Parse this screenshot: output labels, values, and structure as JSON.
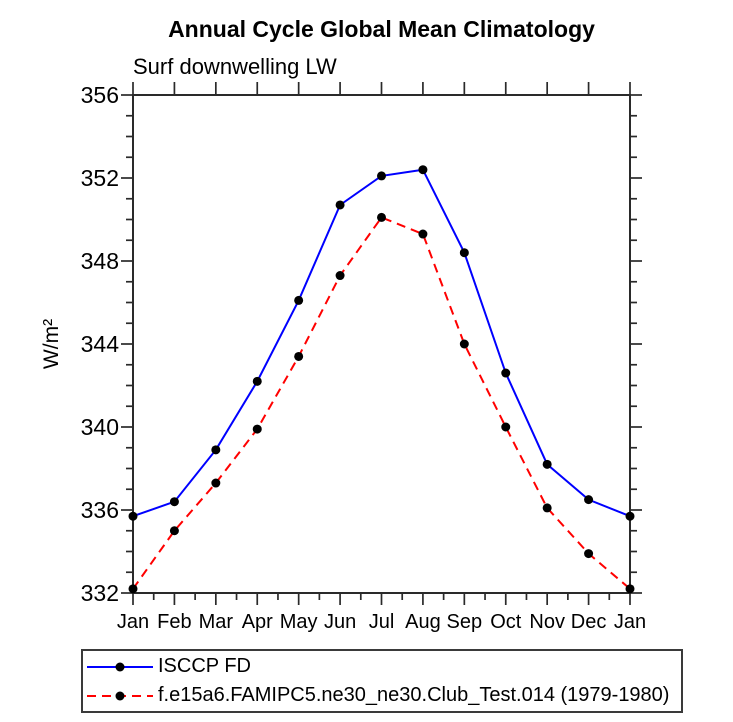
{
  "figure": {
    "title": "Annual Cycle Global Mean Climatology",
    "subtitle": "Surf downwelling LW",
    "ylabel": "W/m²"
  },
  "legend": {
    "position": "bottom-left",
    "items": [
      {
        "label": "ISCCP FD",
        "color": "#0000ff",
        "line_style": "solid",
        "marker": "filled-circle"
      },
      {
        "label": "f.e15a6.FAMIPC5.ne30_ne30.Club_Test.014 (1979-1980)",
        "color": "#ff0000",
        "line_style": "dashed",
        "marker": "filled-circle"
      }
    ]
  },
  "chart_data": {
    "type": "line",
    "title": "Annual Cycle Global Mean Climatology",
    "subtitle": "Surf downwelling LW",
    "xlabel": "",
    "ylabel": "W/m²",
    "categories": [
      "Jan",
      "Feb",
      "Mar",
      "Apr",
      "May",
      "Jun",
      "Jul",
      "Aug",
      "Sep",
      "Oct",
      "Nov",
      "Dec",
      "Jan"
    ],
    "series": [
      {
        "name": "ISCCP FD",
        "color": "#0000ff",
        "line_style": "solid",
        "values": [
          335.7,
          336.4,
          338.9,
          342.2,
          346.1,
          350.7,
          352.1,
          352.4,
          348.4,
          342.6,
          338.2,
          336.5,
          335.7
        ]
      },
      {
        "name": "f.e15a6.FAMIPC5.ne30_ne30.Club_Test.014 (1979-1980)",
        "color": "#ff0000",
        "line_style": "dashed",
        "values": [
          332.2,
          335.0,
          337.3,
          339.9,
          343.4,
          347.3,
          350.1,
          349.3,
          344.0,
          340.0,
          336.1,
          333.9,
          332.2
        ]
      }
    ],
    "ylim": [
      332,
      356
    ],
    "ytick_labels": [
      "332",
      "336",
      "340",
      "344",
      "348",
      "352",
      "356"
    ],
    "ytick_major_step": 4,
    "ytick_minor_step": 1,
    "marker": "filled-circle",
    "marker_color": "#000000",
    "axis_color": "#2a2a2a",
    "grid": false,
    "legend_position": "bottom-left"
  }
}
